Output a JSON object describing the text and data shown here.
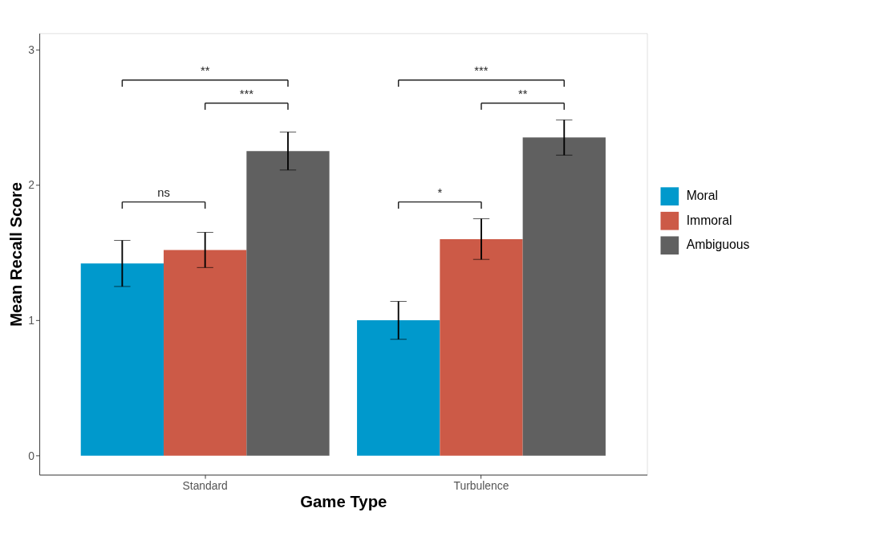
{
  "chart_data": {
    "type": "bar",
    "xlabel": "Game Type",
    "ylabel": "Mean Recall Score",
    "categories": [
      "Standard",
      "Turbulence"
    ],
    "series": [
      {
        "name": "Moral",
        "color": "#0099cc",
        "values": [
          1.42,
          1.0
        ],
        "errors": [
          0.17,
          0.14
        ]
      },
      {
        "name": "Immoral",
        "color": "#cc5a47",
        "values": [
          1.52,
          1.6
        ],
        "errors": [
          0.13,
          0.15
        ]
      },
      {
        "name": "Ambiguous",
        "color": "#606060",
        "values": [
          2.25,
          2.35
        ],
        "errors": [
          0.14,
          0.13
        ]
      }
    ],
    "ylim": [
      -0.14,
      3.12
    ],
    "yticks": [
      0,
      1,
      2,
      3
    ],
    "grid": false,
    "legend": "right",
    "annotations": [
      "**",
      "***",
      "ns",
      "***",
      "**",
      "*"
    ]
  }
}
